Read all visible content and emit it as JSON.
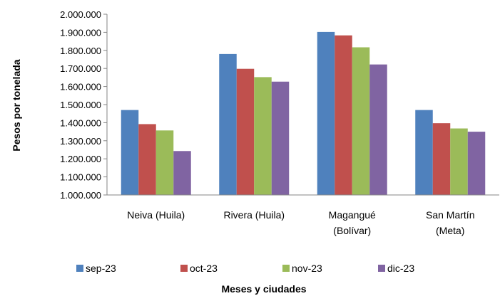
{
  "chart_data": {
    "type": "bar",
    "title": "",
    "xlabel": "Meses y ciudades",
    "ylabel": "Pesos por tonelada",
    "ylim": [
      1000000,
      2000000
    ],
    "yticks": [
      "1.000.000",
      "1.100.000",
      "1.200.000",
      "1.300.000",
      "1.400.000",
      "1.500.000",
      "1.600.000",
      "1.700.000",
      "1.800.000",
      "1.900.000",
      "2.000.000"
    ],
    "categories": [
      [
        "Neiva (Huila)"
      ],
      [
        "Rivera (Huila)"
      ],
      [
        "Magangué",
        "(Bolívar)"
      ],
      [
        "San Martín",
        "(Meta)"
      ]
    ],
    "series": [
      {
        "name": "sep-23",
        "color": "#4F81BD",
        "values": [
          1470000,
          1780000,
          1902000,
          1470000
        ]
      },
      {
        "name": "oct-23",
        "color": "#C0504D",
        "values": [
          1392000,
          1698000,
          1883000,
          1397000
        ]
      },
      {
        "name": "nov-23",
        "color": "#9BBB59",
        "values": [
          1357000,
          1652000,
          1817000,
          1368000
        ]
      },
      {
        "name": "dic-23",
        "color": "#8064A2",
        "values": [
          1243000,
          1627000,
          1722000,
          1350000
        ]
      }
    ],
    "grid": false,
    "legend_position": "bottom"
  }
}
